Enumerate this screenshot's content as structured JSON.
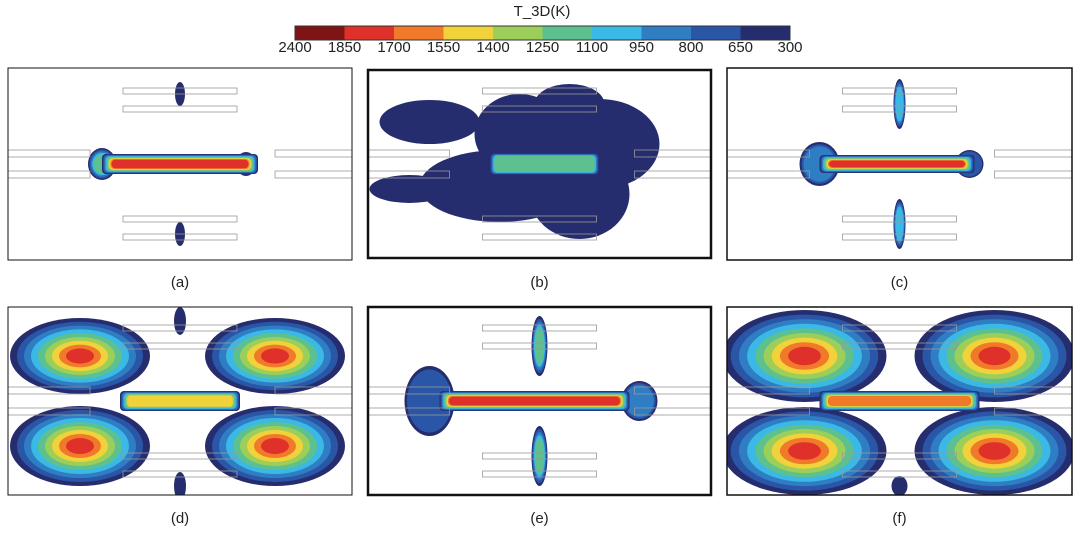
{
  "colorbar": {
    "title": "T_3D(K)",
    "labels": [
      2400,
      1850,
      1700,
      1550,
      1400,
      1250,
      1100,
      950,
      800,
      650,
      300
    ],
    "colors": [
      "#7f1416",
      "#e0302a",
      "#f07a2a",
      "#f2d23a",
      "#9ccf5a",
      "#5cc08f",
      "#3ab8e6",
      "#2f7ec4",
      "#2a56a8",
      "#262d6e"
    ]
  },
  "panels": [
    {
      "label": "(a)"
    },
    {
      "label": "(b)"
    },
    {
      "label": "(c)"
    },
    {
      "label": "(d)"
    },
    {
      "label": "(e)"
    },
    {
      "label": "(f)"
    }
  ]
}
